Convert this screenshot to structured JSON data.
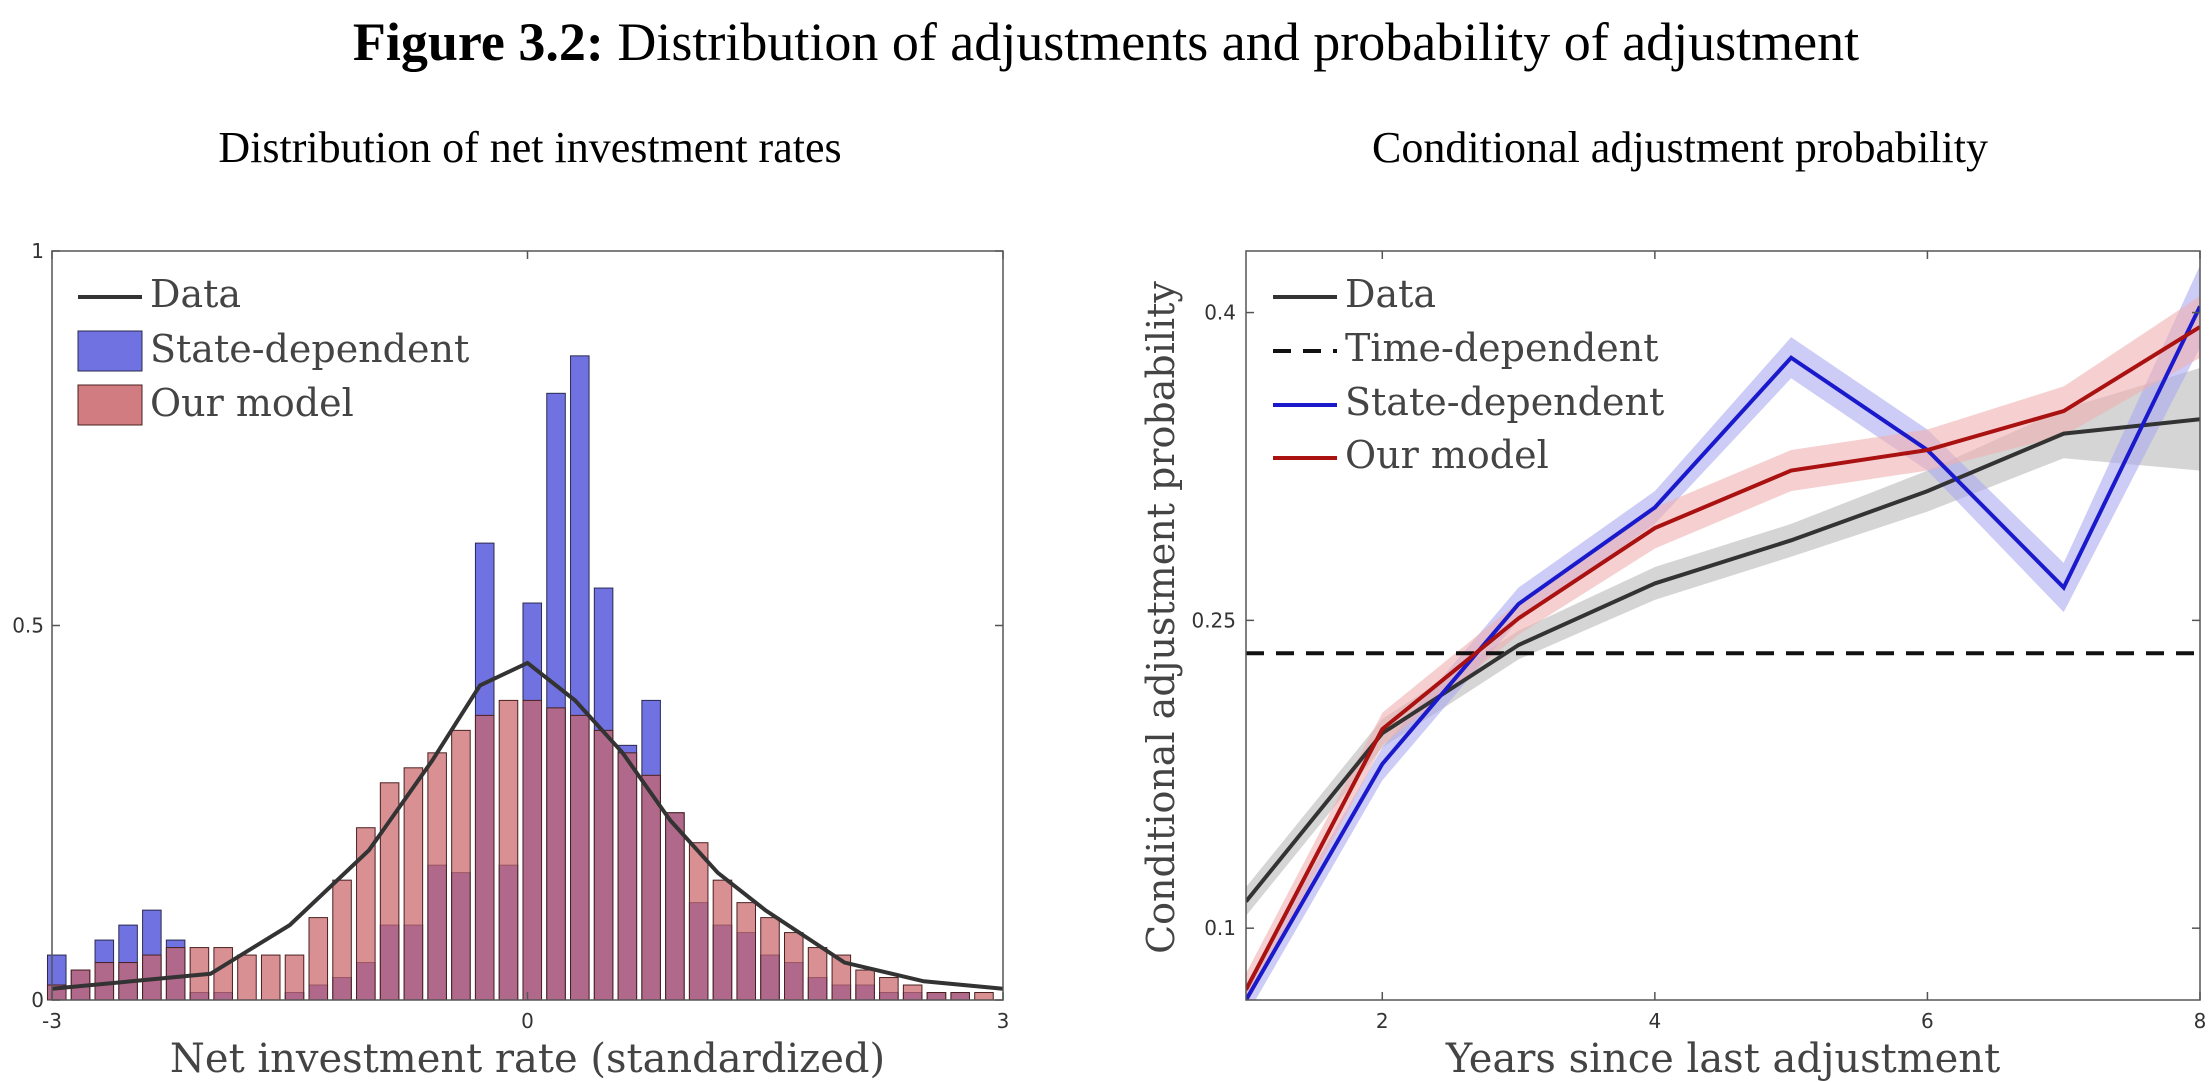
{
  "figure": {
    "title_bold": "Figure 3.2:",
    "title_rest": " Distribution of adjustments and probability of adjustment"
  },
  "chart_data": [
    {
      "type": "bar",
      "title": "Distribution of net investment rates",
      "xlabel": "Net investment rate (standardized)",
      "ylabel": "",
      "xlim": [
        -3,
        3
      ],
      "ylim": [
        0,
        1
      ],
      "xticks": [
        "-3",
        "0",
        "3"
      ],
      "yticks": [
        "0",
        "0.5",
        "1"
      ],
      "legend_position": "top-left",
      "bin_centers": [
        -2.97,
        -2.82,
        -2.67,
        -2.52,
        -2.37,
        -2.22,
        -2.07,
        -1.92,
        -1.77,
        -1.62,
        -1.47,
        -1.32,
        -1.17,
        -1.02,
        -0.87,
        -0.72,
        -0.57,
        -0.42,
        -0.27,
        -0.12,
        0.03,
        0.18,
        0.33,
        0.48,
        0.63,
        0.78,
        0.93,
        1.08,
        1.23,
        1.38,
        1.53,
        1.68,
        1.83,
        1.98,
        2.13,
        2.28,
        2.43,
        2.58,
        2.73,
        2.88
      ],
      "series": [
        {
          "name": "State-dependent",
          "kind": "bar",
          "color": "#6f72e0",
          "values": [
            0.06,
            0.04,
            0.08,
            0.1,
            0.12,
            0.08,
            0.01,
            0.01,
            0.0,
            0.0,
            0.01,
            0.02,
            0.03,
            0.05,
            0.1,
            0.1,
            0.18,
            0.17,
            0.61,
            0.18,
            0.53,
            0.81,
            0.86,
            0.55,
            0.34,
            0.4,
            0.25,
            0.13,
            0.1,
            0.09,
            0.06,
            0.05,
            0.03,
            0.02,
            0.02,
            0.01,
            0.01,
            0.01,
            0.01,
            0.0
          ]
        },
        {
          "name": "Our model",
          "kind": "bar",
          "color": "#c9656a",
          "values": [
            0.02,
            0.04,
            0.05,
            0.05,
            0.06,
            0.07,
            0.07,
            0.07,
            0.06,
            0.06,
            0.06,
            0.11,
            0.16,
            0.23,
            0.29,
            0.31,
            0.33,
            0.36,
            0.38,
            0.4,
            0.4,
            0.39,
            0.38,
            0.36,
            0.33,
            0.3,
            0.25,
            0.21,
            0.16,
            0.13,
            0.11,
            0.09,
            0.07,
            0.06,
            0.04,
            0.03,
            0.02,
            0.01,
            0.01,
            0.01
          ]
        },
        {
          "name": "Data",
          "kind": "line",
          "color": "#333333",
          "x": [
            -3,
            -2.5,
            -2,
            -1.5,
            -1,
            -0.6,
            -0.3,
            0,
            0.3,
            0.6,
            0.9,
            1.2,
            1.5,
            2,
            2.5,
            3
          ],
          "y": [
            0.015,
            0.025,
            0.035,
            0.1,
            0.2,
            0.32,
            0.42,
            0.45,
            0.4,
            0.33,
            0.24,
            0.17,
            0.12,
            0.05,
            0.025,
            0.015
          ]
        }
      ]
    },
    {
      "type": "line",
      "title": "Conditional adjustment probability",
      "xlabel": "Years since last adjustment",
      "ylabel": "Conditional adjustment probability",
      "xlim": [
        1,
        8
      ],
      "ylim": [
        0.065,
        0.43
      ],
      "xticks": [
        "2",
        "4",
        "6",
        "8"
      ],
      "yticks": [
        "0.1",
        "0.25",
        "0.4"
      ],
      "legend_position": "top-left",
      "series": [
        {
          "name": "Data",
          "color": "#333333",
          "band_color": "#b9b9b9",
          "dash": false,
          "x": [
            1,
            2,
            3,
            4,
            5,
            6,
            7,
            8
          ],
          "y": [
            0.113,
            0.195,
            0.238,
            0.268,
            0.289,
            0.313,
            0.341,
            0.348
          ],
          "band": [
            0.007,
            0.007,
            0.007,
            0.008,
            0.008,
            0.01,
            0.012,
            0.025
          ]
        },
        {
          "name": "Time-dependent",
          "color": "#111111",
          "dash": true,
          "x": [
            1,
            8
          ],
          "y": [
            0.234,
            0.234
          ]
        },
        {
          "name": "State-dependent",
          "color": "#1a1acc",
          "band_color": "#aaaaf0",
          "dash": false,
          "x": [
            1,
            2,
            3,
            4,
            5,
            6,
            7,
            8
          ],
          "y": [
            0.065,
            0.18,
            0.258,
            0.305,
            0.378,
            0.333,
            0.266,
            0.403
          ],
          "band": [
            0.008,
            0.008,
            0.008,
            0.008,
            0.01,
            0.01,
            0.012,
            0.02
          ]
        },
        {
          "name": "Our model",
          "color": "#aa1111",
          "band_color": "#f0b0b0",
          "dash": false,
          "x": [
            1,
            2,
            3,
            4,
            5,
            6,
            7,
            8
          ],
          "y": [
            0.07,
            0.197,
            0.251,
            0.295,
            0.323,
            0.333,
            0.352,
            0.393
          ],
          "band": [
            0.008,
            0.008,
            0.008,
            0.01,
            0.01,
            0.01,
            0.012,
            0.015
          ]
        }
      ]
    }
  ]
}
